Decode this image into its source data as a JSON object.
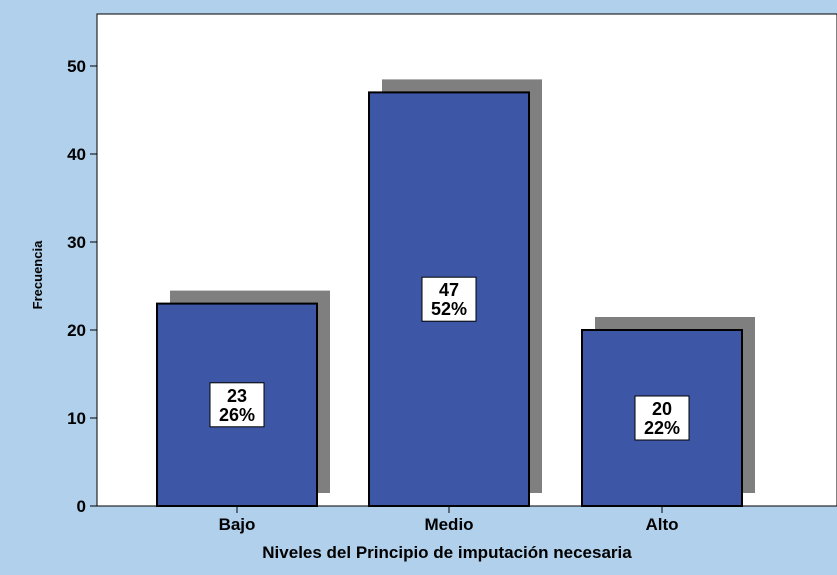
{
  "chart_data": {
    "type": "bar",
    "categories": [
      "Bajo",
      "Medio",
      "Alto"
    ],
    "values": [
      23,
      47,
      20
    ],
    "percent_labels": [
      "26%",
      "52%",
      "22%"
    ],
    "xlabel": "Niveles del Principio de imputación necesaria",
    "ylabel": "Frecuencia",
    "ylim": [
      0,
      55
    ],
    "yticks": [
      0,
      10,
      20,
      30,
      40,
      50
    ],
    "grid": false,
    "legend": "none",
    "colors": {
      "bar": "#3d56a6",
      "shadow": "#7f7f7f",
      "outer_background": "#b0d0ec",
      "plot_background": "#ffffff",
      "label_box": "#ffffff"
    }
  }
}
